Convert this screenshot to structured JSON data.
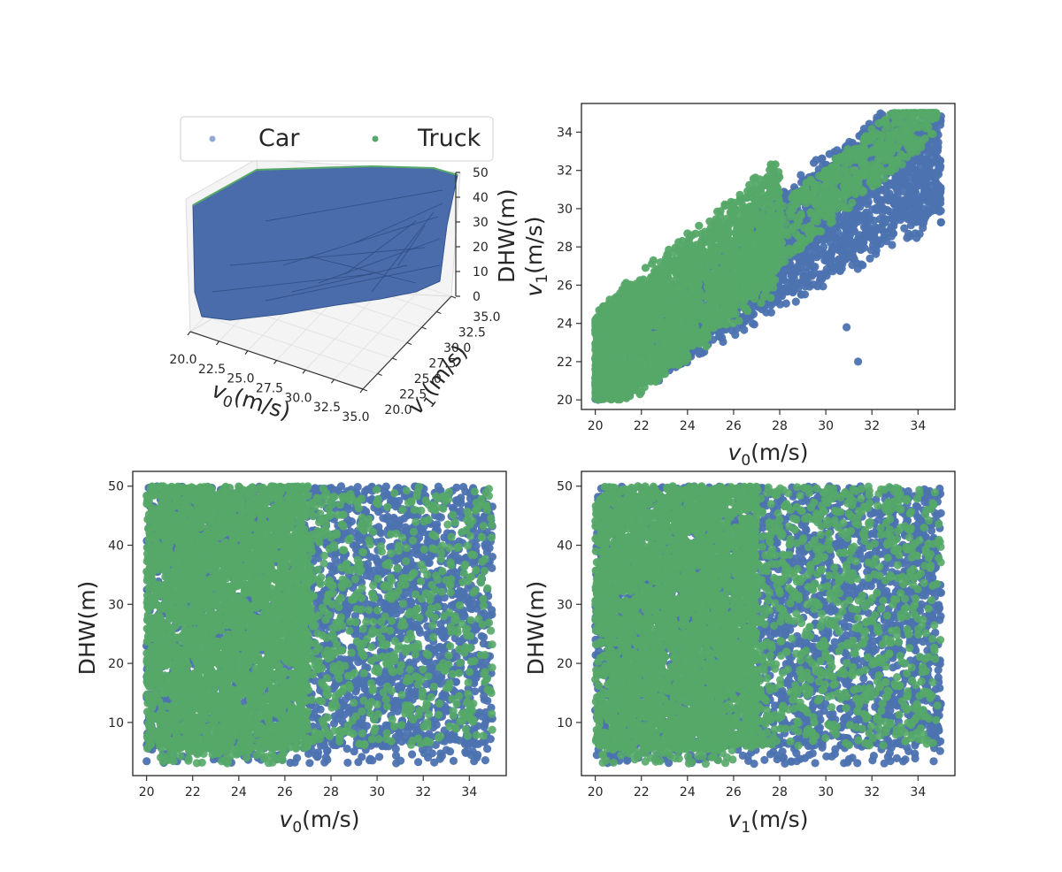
{
  "colors": {
    "car": "#4c72b0",
    "truck": "#55a868",
    "surface": "#4a6cab",
    "surface_edge": "#34558f"
  },
  "legend": {
    "entries": [
      {
        "label": "Car",
        "series": "car"
      },
      {
        "label": "Truck",
        "series": "truck"
      }
    ]
  },
  "chart_data": [
    {
      "id": "surface3d",
      "type": "surface3d",
      "xlabel_symbol": "v",
      "xlabel_sub": "0",
      "xlabel_unit": "(m/s)",
      "ylabel_symbol": "v",
      "ylabel_sub": "1",
      "ylabel_unit": "(m/s)",
      "zlabel": "DHW(m)",
      "xticks": [
        "20.0",
        "22.5",
        "25.0",
        "27.5",
        "30.0",
        "32.5",
        "35.0"
      ],
      "yticks": [
        "20.0",
        "22.5",
        "25.0",
        "27.5",
        "30.0",
        "32.5",
        "35.0"
      ],
      "zticks": [
        "0",
        "10",
        "20",
        "30",
        "40",
        "50"
      ],
      "xlim": [
        20,
        35
      ],
      "ylim": [
        20,
        35
      ],
      "zlim": [
        0,
        50
      ]
    },
    {
      "id": "v0_v1",
      "type": "scatter",
      "xlabel_symbol": "v",
      "xlabel_sub": "0",
      "xlabel_unit": "(m/s)",
      "ylabel_symbol": "v",
      "ylabel_sub": "1",
      "ylabel_unit": "(m/s)",
      "xlim": [
        19.4,
        35.6
      ],
      "ylim": [
        19.5,
        35.5
      ],
      "xticks": [
        "20",
        "22",
        "24",
        "26",
        "28",
        "30",
        "32",
        "34"
      ],
      "yticks": [
        "20",
        "22",
        "24",
        "26",
        "28",
        "30",
        "32",
        "34"
      ],
      "series": [
        {
          "name": "Car",
          "x_range": [
            20,
            35
          ],
          "y_range": [
            20,
            35
          ],
          "relation": "v1 between 0.67*v0+6.5 and v0+2.5",
          "outliers": [
            [
              31.4,
              22.0
            ],
            [
              30.9,
              23.8
            ]
          ]
        },
        {
          "name": "Truck",
          "x_range": [
            20,
            34.8
          ],
          "y_range": [
            20,
            35
          ],
          "relation": "dense band v1 between 0.9*v0+1 and v0+4.5"
        }
      ]
    },
    {
      "id": "v0_dhw",
      "type": "scatter",
      "xlabel_symbol": "v",
      "xlabel_sub": "0",
      "xlabel_unit": "(m/s)",
      "ylabel": "DHW(m)",
      "xlim": [
        19.4,
        35.6
      ],
      "ylim": [
        1,
        52.5
      ],
      "xticks": [
        "20",
        "22",
        "24",
        "26",
        "28",
        "30",
        "32",
        "34"
      ],
      "yticks": [
        "10",
        "20",
        "30",
        "40",
        "50"
      ],
      "series": [
        {
          "name": "Car",
          "x_range": [
            20,
            35
          ],
          "y_range": [
            3,
            50
          ]
        },
        {
          "name": "Truck",
          "x_range": [
            20,
            35
          ],
          "y_range": [
            3,
            50
          ],
          "dense_x_range": [
            20,
            27
          ]
        }
      ]
    },
    {
      "id": "v1_dhw",
      "type": "scatter",
      "xlabel_symbol": "v",
      "xlabel_sub": "1",
      "xlabel_unit": "(m/s)",
      "ylabel": "DHW(m)",
      "xlim": [
        19.4,
        35.6
      ],
      "ylim": [
        1,
        52.5
      ],
      "xticks": [
        "20",
        "22",
        "24",
        "26",
        "28",
        "30",
        "32",
        "34"
      ],
      "yticks": [
        "10",
        "20",
        "30",
        "40",
        "50"
      ],
      "series": [
        {
          "name": "Car",
          "x_range": [
            20,
            35
          ],
          "y_range": [
            3,
            50
          ]
        },
        {
          "name": "Truck",
          "x_range": [
            20,
            35
          ],
          "y_range": [
            3,
            50
          ],
          "dense_x_range": [
            20,
            27
          ]
        }
      ]
    }
  ]
}
